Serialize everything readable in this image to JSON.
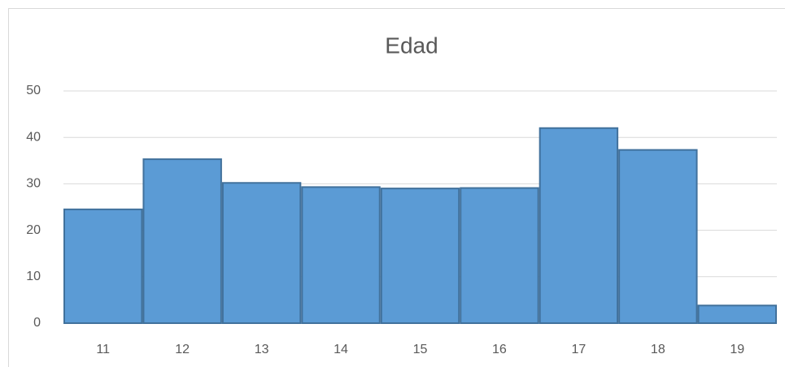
{
  "chart_data": {
    "type": "bar",
    "title": "Edad",
    "categories": [
      "11",
      "12",
      "13",
      "14",
      "15",
      "16",
      "17",
      "18",
      "19"
    ],
    "values": [
      24.5,
      35.3,
      30.2,
      29.3,
      29,
      29.1,
      42,
      37.3,
      3.8
    ],
    "color": "#5b9bd5",
    "ylim": [
      0,
      50
    ],
    "yticks": [
      0,
      10,
      20,
      30,
      40,
      50
    ],
    "grid": true
  }
}
